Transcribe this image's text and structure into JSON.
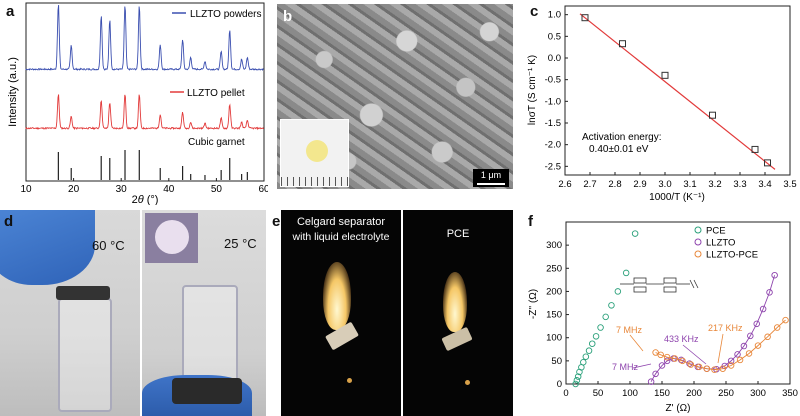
{
  "panel_labels": {
    "a": "a",
    "b": "b",
    "c": "c",
    "d": "d",
    "e": "e",
    "f": "f"
  },
  "panel_a": {
    "legend_powders": "LLZTO powders",
    "legend_pellet": "LLZTO pellet",
    "legend_garnet": "Cubic garnet",
    "ylabel": "Intensity (a.u.)",
    "xlabel_theta": "θ",
    "xlabel_prefix": "2",
    "xlabel_unit": " (°)",
    "xticks": [
      "10",
      "20",
      "30",
      "40",
      "50",
      "60"
    ],
    "colors": {
      "powders": "#3b4fb0",
      "pellet": "#e23a3a",
      "garnet": "#222222"
    },
    "peaks": [
      16.8,
      19.5,
      25.8,
      27.6,
      30.8,
      33.8,
      38.2,
      42.9,
      44.6,
      47.6,
      51.0,
      52.8,
      55.3,
      56.5
    ]
  },
  "panel_b": {
    "scale_bar": "1 μm"
  },
  "panel_c": {
    "chart_data": {
      "type": "scatter",
      "xlabel": "1000/T (K⁻¹)",
      "ylabel": "lnσT (S cm⁻¹ K)",
      "xlim": [
        2.6,
        3.5
      ],
      "ylim": [
        -2.5,
        1.0
      ],
      "xticks": [
        "2.6",
        "2.7",
        "2.8",
        "2.9",
        "3.0",
        "3.1",
        "3.2",
        "3.3",
        "3.4",
        "3.5"
      ],
      "yticks": [
        "1.0",
        "0.5",
        "0.0",
        "-0.5",
        "-1.0",
        "-1.5",
        "-2.0",
        "-2.5"
      ],
      "x": [
        2.68,
        2.83,
        3.0,
        3.19,
        3.36,
        3.41
      ],
      "y": [
        0.93,
        0.33,
        -0.4,
        -1.32,
        -2.11,
        -2.42
      ],
      "fit": [
        [
          2.66,
          1.02
        ],
        [
          3.44,
          -2.57
        ]
      ],
      "annotation_line1": "Activation energy:",
      "annotation_line2": "0.40±0.01 eV",
      "marker_color": "#333333",
      "line_color": "#e23a3a"
    }
  },
  "panel_d": {
    "temp_left": "60 °C",
    "temp_right": "25 °C"
  },
  "panel_e": {
    "left_line1": "Celgard separator",
    "left_line2": "with liquid electrolyte",
    "right_label": "PCE"
  },
  "panel_f": {
    "chart_data": {
      "type": "scatter",
      "xlabel": "Z' (Ω)",
      "ylabel": "-Z'' (Ω)",
      "xlim": [
        0,
        350
      ],
      "ylim": [
        0,
        350
      ],
      "xticks": [
        "0",
        "50",
        "100",
        "150",
        "200",
        "250",
        "300",
        "350"
      ],
      "yticks": [
        "0",
        "50",
        "100",
        "150",
        "200",
        "250",
        "300"
      ],
      "series": [
        {
          "name": "PCE",
          "color": "#2aa07a",
          "points": [
            [
              15,
              0
            ],
            [
              17,
              8
            ],
            [
              19,
              16
            ],
            [
              21,
              26
            ],
            [
              24,
              36
            ],
            [
              27,
              47
            ],
            [
              31,
              59
            ],
            [
              36,
              72
            ],
            [
              41,
              87
            ],
            [
              47,
              103
            ],
            [
              54,
              122
            ],
            [
              62,
              145
            ],
            [
              71,
              170
            ],
            [
              81,
              200
            ],
            [
              94,
              240
            ],
            [
              108,
              325
            ]
          ]
        },
        {
          "name": "LLZTO",
          "color": "#8e44ad",
          "points": [
            [
              133,
              5
            ],
            [
              140,
              22
            ],
            [
              150,
              40
            ],
            [
              158,
              50
            ],
            [
              168,
              55
            ],
            [
              180,
              52
            ],
            [
              193,
              44
            ],
            [
              206,
              37
            ],
            [
              220,
              33
            ],
            [
              235,
              32
            ],
            [
              248,
              39
            ],
            [
              258,
              50
            ],
            [
              268,
              64
            ],
            [
              278,
              82
            ],
            [
              288,
              104
            ],
            [
              298,
              130
            ],
            [
              308,
              162
            ],
            [
              318,
              198
            ],
            [
              326,
              235
            ]
          ]
        },
        {
          "name": "LLZTO-PCE",
          "color": "#e8873a",
          "points": [
            [
              140,
              68
            ],
            [
              148,
              63
            ],
            [
              158,
              58
            ],
            [
              170,
              55
            ],
            [
              182,
              50
            ],
            [
              195,
              42
            ],
            [
              208,
              37
            ],
            [
              220,
              33
            ],
            [
              232,
              31
            ],
            [
              245,
              33
            ],
            [
              258,
              40
            ],
            [
              272,
              52
            ],
            [
              286,
              66
            ],
            [
              300,
              83
            ],
            [
              315,
              102
            ],
            [
              330,
              122
            ],
            [
              343,
              138
            ]
          ]
        }
      ],
      "annotations": {
        "mhz_orange": "7 MHz",
        "mhz_purple": "7 MHz",
        "khz_433": "433 KHz",
        "khz_217": "217 KHz"
      }
    }
  }
}
